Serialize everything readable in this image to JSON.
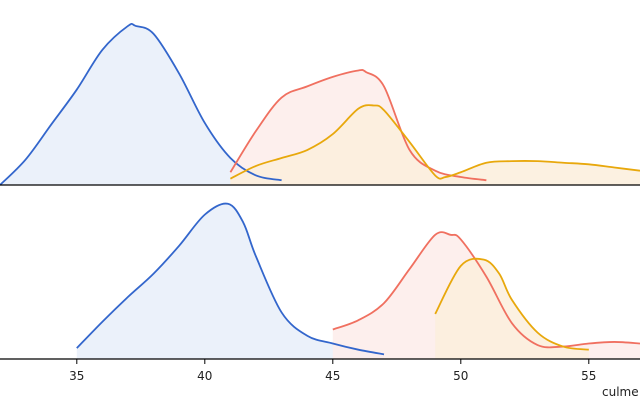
{
  "chart_data": {
    "type": "area",
    "title": "",
    "xlabel": "culme",
    "xlim": [
      32,
      57
    ],
    "xticks": [
      35,
      40,
      45,
      50,
      55
    ],
    "grid": false,
    "legend": "none",
    "panels": [
      {
        "name": "",
        "ylim": [
          0,
          1.05
        ],
        "series": [
          {
            "color": "#3366cc",
            "fill": "#e8eef9",
            "x": [
              32,
              33,
              34,
              35,
              36,
              37,
              37.3,
              38,
              39,
              40,
              41,
              42,
              43
            ],
            "y": [
              0.0,
              0.16,
              0.38,
              0.6,
              0.85,
              1.0,
              1.0,
              0.95,
              0.7,
              0.39,
              0.17,
              0.06,
              0.03
            ]
          },
          {
            "color": "#f07060",
            "fill": "#fdecea",
            "x": [
              41,
              42,
              43,
              44,
              45,
              46,
              46.3,
              47,
              48,
              49,
              50,
              51
            ],
            "y": [
              0.08,
              0.34,
              0.55,
              0.62,
              0.68,
              0.72,
              0.71,
              0.62,
              0.22,
              0.09,
              0.05,
              0.03
            ]
          },
          {
            "color": "#e8a80c",
            "fill": "#fcefdc",
            "x": [
              41,
              42,
              43,
              44,
              45,
              46,
              46.6,
              47,
              48,
              49,
              49.4,
              50,
              51,
              52,
              53,
              54,
              55,
              56,
              57
            ],
            "y": [
              0.04,
              0.12,
              0.17,
              0.22,
              0.32,
              0.48,
              0.5,
              0.47,
              0.27,
              0.06,
              0.05,
              0.08,
              0.14,
              0.15,
              0.15,
              0.14,
              0.13,
              0.11,
              0.09
            ]
          }
        ]
      },
      {
        "name": "",
        "ylim": [
          0,
          1.05
        ],
        "series": [
          {
            "color": "#3366cc",
            "fill": "#e8eef9",
            "x": [
              35,
              36,
              37,
              38,
              39,
              40,
              40.9,
              41.5,
              42,
              43,
              44,
              45,
              46,
              47
            ],
            "y": [
              0.07,
              0.24,
              0.4,
              0.55,
              0.73,
              0.93,
              1.0,
              0.88,
              0.66,
              0.3,
              0.15,
              0.1,
              0.06,
              0.03
            ]
          },
          {
            "color": "#f07060",
            "fill": "#fdecea",
            "x": [
              45,
              46,
              47,
              48,
              49,
              49.6,
              50,
              51,
              52,
              53,
              54,
              55,
              56,
              57
            ],
            "y": [
              0.19,
              0.25,
              0.36,
              0.58,
              0.8,
              0.8,
              0.77,
              0.53,
              0.23,
              0.09,
              0.08,
              0.1,
              0.11,
              0.1
            ]
          },
          {
            "color": "#e8a80c",
            "fill": "#fcefdc",
            "x": [
              49,
              50,
              50.9,
              51.5,
              52,
              53,
              54,
              55
            ],
            "y": [
              0.29,
              0.6,
              0.64,
              0.55,
              0.38,
              0.17,
              0.08,
              0.06
            ]
          }
        ]
      }
    ]
  }
}
